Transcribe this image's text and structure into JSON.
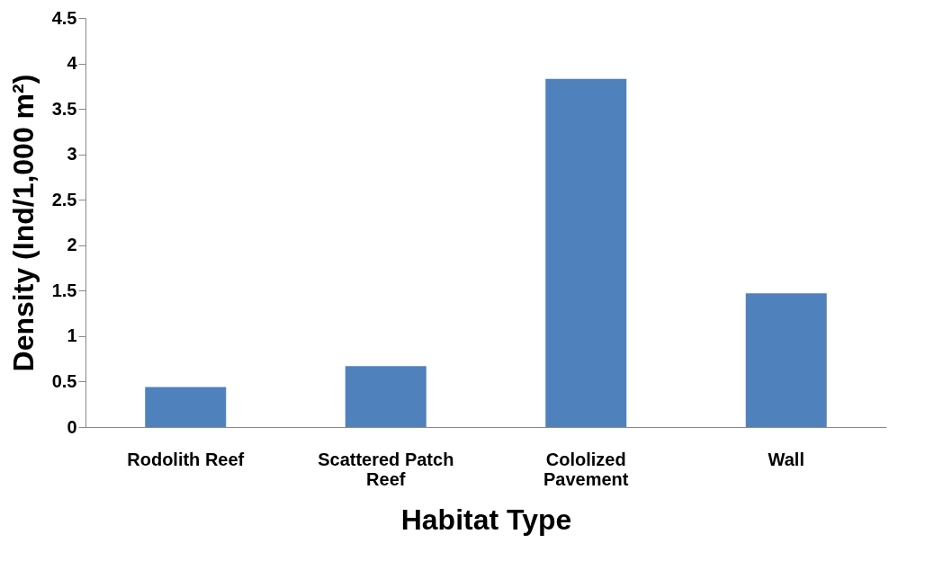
{
  "chart_data": {
    "type": "bar",
    "xlabel": "Habitat Type",
    "ylabel": "Density (Ind/1,000 m²)",
    "categories": [
      "Rodolith Reef",
      "Scattered Patch Reef",
      "Cololized Pavement",
      "Wall"
    ],
    "values": [
      0.44,
      0.67,
      3.83,
      1.47
    ],
    "color": "#4f81bd",
    "ylim": [
      0,
      4.5
    ],
    "yticks": [
      0,
      0.5,
      1,
      1.5,
      2,
      2.5,
      3,
      3.5,
      4,
      4.5
    ],
    "grid": false,
    "legend": false
  }
}
